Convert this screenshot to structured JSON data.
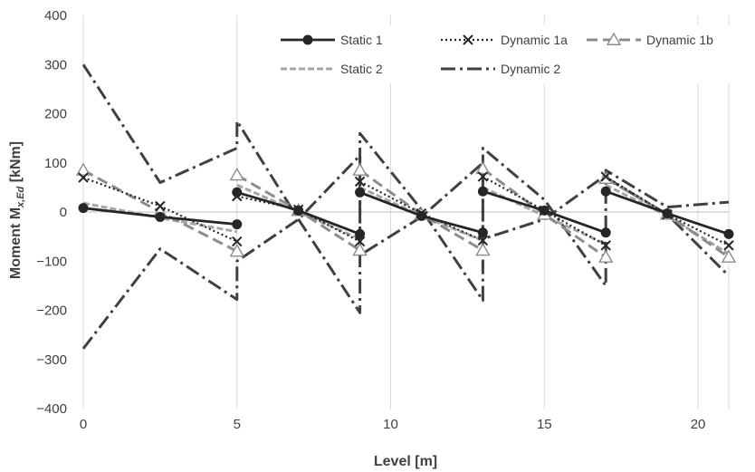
{
  "chart_data": {
    "type": "line",
    "xlabel": "Level [m]",
    "ylabel": "Moment M",
    "ylabel_sub": "x,Ed",
    "ylabel_unit": " [kNm]",
    "xlim": [
      0,
      21
    ],
    "ylim": [
      -400,
      400
    ],
    "xticks": [
      0,
      5,
      10,
      15,
      20
    ],
    "yticks": [
      -400,
      -300,
      -200,
      -100,
      0,
      100,
      200,
      300,
      400
    ],
    "ytick_labels": [
      "−400",
      "−300",
      "−200",
      "−100",
      "0",
      "100",
      "200",
      "300",
      "400"
    ],
    "grid": "vertical",
    "legend_position": "top-right",
    "series": [
      {
        "name": "Static 1",
        "color": "#262626",
        "dash": "solid",
        "marker": "dot",
        "segments": [
          [
            [
              0,
              8
            ],
            [
              2.5,
              -10
            ],
            [
              5,
              -25
            ]
          ],
          [
            [
              5,
              40
            ],
            [
              7,
              3
            ],
            [
              9,
              -45
            ]
          ],
          [
            [
              9,
              40
            ],
            [
              11,
              -8
            ],
            [
              13,
              -42
            ]
          ],
          [
            [
              13,
              42
            ],
            [
              15,
              3
            ],
            [
              17,
              -42
            ]
          ],
          [
            [
              17,
              42
            ],
            [
              19,
              -3
            ],
            [
              21,
              -45
            ]
          ]
        ]
      },
      {
        "name": "Dynamic 1a",
        "color": "#262626",
        "dash": "2,3",
        "marker": "x",
        "segments": [
          [
            [
              0,
              70
            ],
            [
              2.5,
              12
            ],
            [
              5,
              -60
            ]
          ],
          [
            [
              5,
              32
            ],
            [
              7,
              5
            ],
            [
              9,
              -60
            ]
          ],
          [
            [
              9,
              62
            ],
            [
              11,
              -3
            ],
            [
              13,
              -58
            ]
          ],
          [
            [
              13,
              72
            ],
            [
              15,
              3
            ],
            [
              17,
              -68
            ]
          ],
          [
            [
              17,
              72
            ],
            [
              19,
              -5
            ],
            [
              21,
              -68
            ]
          ]
        ]
      },
      {
        "name": "Dynamic 1b",
        "color": "#8c8c8c",
        "dash": "12,6",
        "marker": "triangle",
        "segments": [
          [
            [
              0,
              85
            ],
            [
              2.5,
              0
            ],
            [
              5,
              -80
            ]
          ],
          [
            [
              5,
              75
            ],
            [
              7,
              3
            ],
            [
              9,
              -78
            ]
          ],
          [
            [
              9,
              85
            ],
            [
              11,
              -5
            ],
            [
              13,
              -78
            ]
          ],
          [
            [
              13,
              88
            ],
            [
              15,
              -5
            ],
            [
              17,
              -92
            ]
          ],
          [
            [
              17,
              68
            ],
            [
              19,
              -5
            ],
            [
              21,
              -92
            ]
          ]
        ]
      },
      {
        "name": "Static 2",
        "color": "#a6a6a6",
        "dash": "7,3",
        "marker": "none",
        "segments": [
          [
            [
              0,
              18
            ],
            [
              2.5,
              -12
            ],
            [
              5,
              -40
            ]
          ],
          [
            [
              5,
              55
            ],
            [
              7,
              0
            ],
            [
              9,
              -55
            ]
          ],
          [
            [
              9,
              50
            ],
            [
              11,
              -8
            ],
            [
              13,
              -58
            ]
          ],
          [
            [
              13,
              50
            ],
            [
              15,
              -8
            ],
            [
              17,
              -65
            ]
          ],
          [
            [
              17,
              55
            ],
            [
              19,
              -8
            ],
            [
              21,
              -85
            ]
          ]
        ]
      },
      {
        "name": "Dynamic 2",
        "color": "#404040",
        "dash": "16,5,3,5",
        "marker": "none",
        "segments": [
          [
            [
              0,
              300
            ],
            [
              2.5,
              60
            ],
            [
              5,
              130
            ],
            [
              5,
              185
            ],
            [
              7,
              -15
            ],
            [
              9,
              -205
            ],
            [
              9,
              160
            ],
            [
              11,
              5
            ],
            [
              13,
              -180
            ],
            [
              13,
              130
            ],
            [
              15,
              25
            ],
            [
              17,
              -150
            ],
            [
              17,
              85
            ],
            [
              19,
              10
            ],
            [
              21,
              20
            ]
          ],
          [
            [
              0,
              -278
            ],
            [
              2.5,
              -75
            ],
            [
              5,
              -178
            ],
            [
              5,
              -100
            ],
            [
              7,
              -15
            ],
            [
              9,
              115
            ],
            [
              9,
              -88
            ],
            [
              11,
              -10
            ],
            [
              13,
              100
            ],
            [
              13,
              -55
            ],
            [
              15,
              -15
            ],
            [
              17,
              75
            ],
            [
              17,
              70
            ],
            [
              19,
              -5
            ],
            [
              21,
              -130
            ]
          ]
        ]
      }
    ]
  }
}
